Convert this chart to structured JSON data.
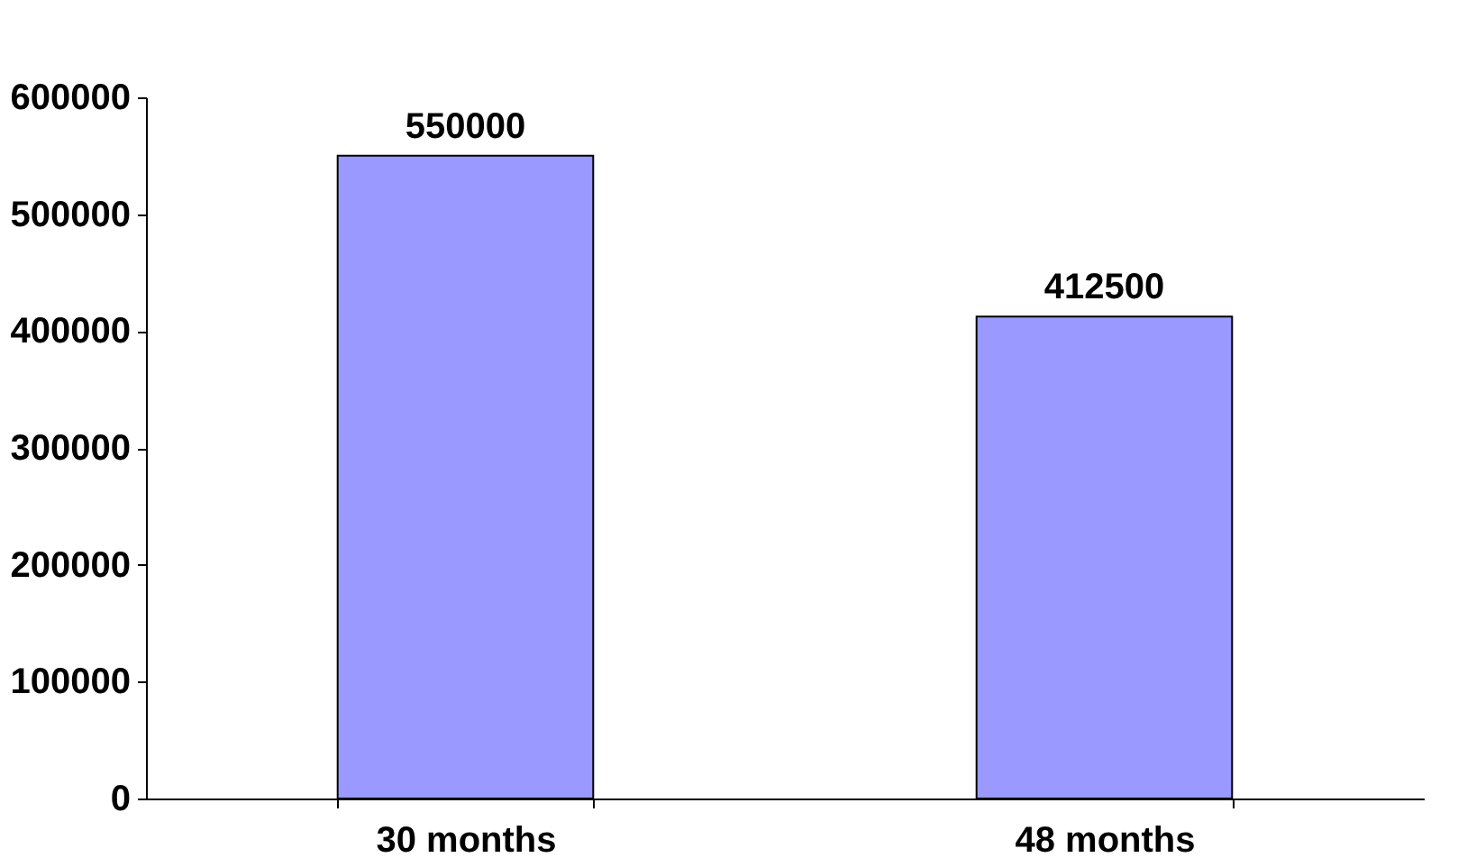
{
  "chart_data": {
    "type": "bar",
    "categories": [
      "30 months",
      "48 months"
    ],
    "values": [
      550000,
      412500
    ],
    "color": "#9999ff",
    "ylim": [
      0,
      600000
    ],
    "yticks": [
      0,
      100000,
      200000,
      300000,
      400000,
      500000,
      600000
    ],
    "data_labels": true,
    "grid": false
  }
}
